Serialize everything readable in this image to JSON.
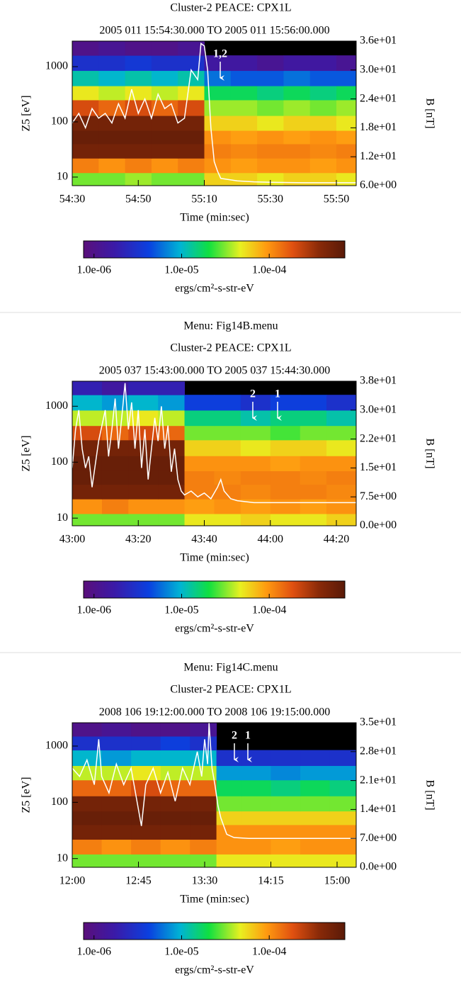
{
  "chart_data": [
    {
      "type": "spectrogram",
      "title": "Cluster-2 PEACE: CPX1L",
      "subtitle": "2005 011 15:54:30.000 TO 2005 011 15:56:00.000",
      "ylabel": "Z5 [eV]",
      "y2label": "B [nT]",
      "xlabel": "Time (min:sec)",
      "log_y": true,
      "ylim": [
        7,
        2900
      ],
      "yticks": [
        10,
        100,
        1000
      ],
      "y2lim": [
        6,
        36
      ],
      "y2ticks": [
        {
          "value": 6,
          "label": "6.0e+00"
        },
        {
          "value": 12,
          "label": "1.2e+01"
        },
        {
          "value": 18,
          "label": "1.8e+01"
        },
        {
          "value": 24,
          "label": "2.4e+01"
        },
        {
          "value": 30,
          "label": "3.0e+01"
        },
        {
          "value": 36,
          "label": "3.6e+01"
        }
      ],
      "y2color": "#000000",
      "xlim": [
        0,
        86
      ],
      "xticks": [
        {
          "value": 0,
          "label": "54:30"
        },
        {
          "value": 20,
          "label": "54:50"
        },
        {
          "value": 40,
          "label": "55:10"
        },
        {
          "value": 60,
          "label": "55:30"
        },
        {
          "value": 80,
          "label": "55:50"
        }
      ],
      "annotations": [
        "1,2"
      ],
      "spectrogram": {
        "xbins": [
          0,
          8,
          16,
          24,
          32,
          40,
          48,
          56,
          64,
          72,
          80,
          86
        ],
        "ybins": [
          7,
          12,
          22,
          40,
          70,
          130,
          250,
          450,
          850,
          1600,
          2900
        ],
        "z": [
          [
            3e-05,
            3e-05,
            3.5e-05,
            3e-05,
            3e-05,
            6e-05,
            6e-05,
            5e-05,
            6e-05,
            6e-05,
            5e-05
          ],
          [
            0.00012,
            0.0001,
            0.00012,
            0.0001,
            0.00012,
            0.0001,
            9e-05,
            0.0001,
            0.0001,
            9e-05,
            0.0001
          ],
          [
            0.0005,
            0.0005,
            0.0005,
            0.0005,
            0.0005,
            0.00012,
            0.00011,
            0.00012,
            0.00012,
            0.00011,
            0.00012
          ],
          [
            0.0006,
            0.0006,
            0.0006,
            0.0006,
            0.0006,
            0.0001,
            9e-05,
            0.0001,
            9e-05,
            0.0001,
            9e-05
          ],
          [
            0.0005,
            0.0005,
            0.0005,
            0.0005,
            0.0005,
            6e-05,
            6e-05,
            5e-05,
            6e-05,
            6e-05,
            5e-05
          ],
          [
            0.0002,
            0.00015,
            0.0002,
            0.00015,
            0.0002,
            3.5e-05,
            3.5e-05,
            3e-05,
            3.5e-05,
            3e-05,
            3.5e-05
          ],
          [
            5e-05,
            4e-05,
            5e-05,
            4e-05,
            5e-05,
            1.8e-05,
            1.8e-05,
            1.5e-05,
            1.8e-05,
            1.5e-05,
            1.8e-05
          ],
          [
            1.2e-05,
            1e-05,
            1.2e-05,
            1e-05,
            1.2e-05,
            6e-06,
            5e-06,
            5e-06,
            6e-06,
            5e-06,
            5e-06
          ],
          [
            3e-06,
            3e-06,
            3.5e-06,
            3e-06,
            3e-06,
            1.5e-06,
            1.5e-06,
            1.2e-06,
            1.5e-06,
            1.5e-06,
            1.2e-06
          ],
          [
            1e-06,
            1.2e-06,
            1e-06,
            1e-06,
            1.2e-06,
            null,
            null,
            null,
            null,
            null,
            null
          ]
        ]
      },
      "line": {
        "color": "#ffffff",
        "axis": "y2",
        "x": [
          0,
          2,
          4,
          6,
          8,
          10,
          12,
          14,
          16,
          18,
          20,
          22,
          24,
          26,
          28,
          30,
          32,
          34,
          36,
          38,
          39,
          40,
          41,
          42,
          43,
          44,
          45,
          50,
          55,
          60,
          70,
          80,
          86
        ],
        "values": [
          19,
          21,
          18,
          22,
          20,
          21,
          19,
          23,
          20,
          26,
          21,
          24,
          20,
          25,
          22,
          23,
          19,
          20,
          30,
          28,
          35.5,
          35,
          30,
          18,
          11,
          9,
          7.5,
          7,
          6.8,
          6.7,
          6.6,
          6.6,
          6.6
        ]
      },
      "colorbar": {
        "clim": [
          7.6e-07,
          0.00073
        ],
        "ticks": [
          {
            "value": 1e-06,
            "label": "1.0e-06"
          },
          {
            "value": 1e-05,
            "label": "1.0e-05"
          },
          {
            "value": 0.0001,
            "label": "1.0e-04"
          }
        ],
        "label": "ergs/cm²-s-str-eV"
      }
    },
    {
      "type": "spectrogram",
      "menu": "Menu: Fig14B.menu",
      "title": "Cluster-2 PEACE: CPX1L",
      "subtitle": "2005 037 15:43:00.000 TO 2005 037 15:44:30.000",
      "ylabel": "Z5 [eV]",
      "y2label": "B [nT]",
      "xlabel": "Time (min:sec)",
      "log_y": true,
      "ylim": [
        7.3,
        2800
      ],
      "yticks": [
        10,
        100,
        1000
      ],
      "y2lim": [
        0,
        37.5
      ],
      "y2ticks": [
        {
          "value": 0,
          "label": "0.0e+00"
        },
        {
          "value": 7.5,
          "label": "7.5e+00"
        },
        {
          "value": 15,
          "label": "1.5e+01"
        },
        {
          "value": 22.5,
          "label": "2.2e+01"
        },
        {
          "value": 30,
          "label": "3.0e+01"
        },
        {
          "value": 37.5,
          "label": "3.8e+01"
        }
      ],
      "y2color": "#000000",
      "xlim": [
        0,
        86
      ],
      "xticks": [
        {
          "value": 0,
          "label": "43:00"
        },
        {
          "value": 20,
          "label": "43:20"
        },
        {
          "value": 40,
          "label": "43:40"
        },
        {
          "value": 60,
          "label": "44:00"
        },
        {
          "value": 80,
          "label": "44:20"
        }
      ],
      "annotations": [
        "2",
        "1"
      ],
      "spectrogram": {
        "xbins": [
          0,
          9,
          17,
          26,
          34,
          43,
          51,
          60,
          69,
          77,
          86
        ],
        "ybins": [
          7.3,
          12,
          22,
          40,
          70,
          130,
          250,
          450,
          850,
          1600,
          2800
        ],
        "z": [
          [
            3e-05,
            3e-05,
            3e-05,
            3e-05,
            5e-05,
            5e-05,
            6e-05,
            5e-05,
            5e-05,
            6e-05
          ],
          [
            0.0001,
            0.00012,
            0.0001,
            0.0001,
            9e-05,
            0.0001,
            9e-05,
            0.0001,
            9e-05,
            0.0001
          ],
          [
            0.0005,
            0.0005,
            0.0005,
            0.0005,
            0.00012,
            0.00012,
            0.00011,
            0.00012,
            0.00012,
            0.00011
          ],
          [
            0.0006,
            0.0006,
            0.0006,
            0.0006,
            0.00012,
            0.00011,
            0.00012,
            0.00012,
            0.00011,
            0.00012
          ],
          [
            0.0006,
            0.0006,
            0.0006,
            0.0006,
            0.0001,
            0.0001,
            0.0001,
            9e-05,
            0.0001,
            0.0001
          ],
          [
            0.0005,
            0.0005,
            0.0005,
            0.0005,
            6e-05,
            6e-05,
            5e-05,
            6e-05,
            6e-05,
            5e-05
          ],
          [
            0.0002,
            0.00015,
            0.0002,
            0.00015,
            3e-05,
            3e-05,
            3e-05,
            2.5e-05,
            3e-05,
            3e-05
          ],
          [
            4e-05,
            4e-05,
            5e-05,
            4e-05,
            1.5e-05,
            1.5e-05,
            1.2e-05,
            1.5e-05,
            1.5e-05,
            1.2e-05
          ],
          [
            1e-05,
            8e-06,
            1e-05,
            8e-06,
            4e-06,
            4e-06,
            3e-06,
            4e-06,
            4e-06,
            3e-06
          ],
          [
            2e-06,
            1.5e-06,
            2e-06,
            2e-06,
            null,
            null,
            null,
            null,
            null,
            null
          ]
        ]
      },
      "line": {
        "color": "#ffffff",
        "axis": "y2",
        "x": [
          0,
          1,
          2,
          3,
          4,
          5,
          6,
          8,
          10,
          11,
          12,
          13,
          14,
          15,
          16,
          17,
          18,
          19,
          20,
          21,
          22,
          23,
          24,
          25,
          26,
          27,
          28,
          29,
          30,
          31,
          32,
          33,
          34,
          36,
          38,
          40,
          42,
          44,
          45,
          46,
          48,
          50,
          55,
          60,
          70,
          80,
          86
        ],
        "values": [
          15,
          25,
          30,
          20,
          15,
          18,
          10,
          22,
          30,
          18,
          25,
          33,
          20,
          28,
          37,
          25,
          32,
          20,
          30,
          15,
          25,
          12,
          20,
          28,
          22,
          31,
          20,
          26,
          14,
          20,
          12,
          9,
          8,
          9,
          7.5,
          8.5,
          7,
          10,
          12,
          9,
          7,
          6.5,
          6,
          6,
          6,
          6,
          6
        ]
      },
      "colorbar": {
        "clim": [
          7.6e-07,
          0.00073
        ],
        "ticks": [
          {
            "value": 1e-06,
            "label": "1.0e-06"
          },
          {
            "value": 1e-05,
            "label": "1.0e-05"
          },
          {
            "value": 0.0001,
            "label": "1.0e-04"
          }
        ],
        "label": "ergs/cm²-s-str-eV"
      }
    },
    {
      "type": "spectrogram",
      "menu": "Menu: Fig14C.menu",
      "title": "Cluster-2 PEACE: CPX1L",
      "subtitle": "2008 106 19:12:00.000 TO 2008 106 19:15:00.000",
      "ylabel": "Z5 [eV]",
      "y2label": "B [nT]",
      "xlabel": "Time (min:sec)",
      "log_y": true,
      "ylim": [
        7,
        2600
      ],
      "yticks": [
        10,
        100,
        1000
      ],
      "y2lim": [
        0,
        35
      ],
      "y2ticks": [
        {
          "value": 0,
          "label": "0.0e+00"
        },
        {
          "value": 7,
          "label": "7.0e+00"
        },
        {
          "value": 14,
          "label": "1.4e+01"
        },
        {
          "value": 21,
          "label": "2.1e+01"
        },
        {
          "value": 28,
          "label": "2.8e+01"
        },
        {
          "value": 35,
          "label": "3.5e+01"
        }
      ],
      "y2color": "#ff0000",
      "xlim": [
        0,
        193
      ],
      "xticks": [
        {
          "value": 0,
          "label": "12:00"
        },
        {
          "value": 45,
          "label": "12:45"
        },
        {
          "value": 90,
          "label": "13:30"
        },
        {
          "value": 135,
          "label": "14:15"
        },
        {
          "value": 180,
          "label": "15:00"
        }
      ],
      "annotations": [
        "2",
        "1"
      ],
      "spectrogram": {
        "xbins": [
          0,
          20,
          40,
          60,
          80,
          98,
          115,
          135,
          155,
          175,
          193
        ],
        "ybins": [
          7,
          12,
          22,
          40,
          70,
          130,
          250,
          450,
          850,
          1500,
          2600
        ],
        "z": [
          [
            3e-05,
            3e-05,
            3e-05,
            3e-05,
            3e-05,
            5e-05,
            5e-05,
            5e-05,
            5e-05,
            5e-05
          ],
          [
            0.00012,
            0.0001,
            0.00012,
            0.0001,
            0.00012,
            0.0001,
            0.0001,
            9e-05,
            0.0001,
            0.0001
          ],
          [
            0.0005,
            0.0005,
            0.0005,
            0.0005,
            0.0005,
            0.0001,
            0.0001,
            0.0001,
            0.0001,
            0.0001
          ],
          [
            0.0006,
            0.0006,
            0.0006,
            0.0006,
            0.0006,
            6e-05,
            6e-05,
            6e-05,
            6e-05,
            6e-05
          ],
          [
            0.0005,
            0.0005,
            0.0005,
            0.0005,
            0.0005,
            3e-05,
            3e-05,
            3e-05,
            3e-05,
            3e-05
          ],
          [
            0.00015,
            0.00015,
            0.0002,
            0.00015,
            0.00015,
            1.8e-05,
            1.8e-05,
            1.5e-05,
            1.8e-05,
            1.5e-05
          ],
          [
            4e-05,
            4e-05,
            5e-05,
            4e-05,
            4e-05,
            8e-06,
            8e-06,
            7e-06,
            8e-06,
            8e-06
          ],
          [
            1e-05,
            8e-06,
            1e-05,
            1e-05,
            1e-05,
            3e-06,
            3e-06,
            3e-06,
            3e-06,
            3e-06
          ],
          [
            3e-06,
            3e-06,
            3e-06,
            4e-06,
            3e-06,
            null,
            null,
            null,
            null,
            null
          ],
          [
            1e-06,
            1.2e-06,
            1e-06,
            1e-06,
            1.2e-06,
            null,
            null,
            null,
            null,
            null
          ]
        ]
      },
      "line": {
        "color": "#ffffff",
        "axis": "y2",
        "x": [
          0,
          5,
          10,
          15,
          18,
          20,
          25,
          30,
          35,
          40,
          45,
          47,
          50,
          55,
          60,
          65,
          70,
          75,
          80,
          85,
          88,
          90,
          92,
          93,
          95,
          97,
          99,
          101,
          103,
          105,
          110,
          120,
          140,
          160,
          180,
          193
        ],
        "values": [
          24,
          22,
          26,
          20,
          31,
          22,
          18,
          25,
          20,
          24,
          14,
          10,
          20,
          24,
          18,
          23,
          16,
          24,
          20,
          28,
          22,
          31,
          25,
          35,
          24,
          20,
          15,
          12,
          10,
          8,
          7.2,
          7,
          7,
          7,
          7,
          7
        ]
      },
      "colorbar": {
        "clim": [
          7.6e-07,
          0.00073
        ],
        "ticks": [
          {
            "value": 1e-06,
            "label": "1.0e-06"
          },
          {
            "value": 1e-05,
            "label": "1.0e-05"
          },
          {
            "value": 0.0001,
            "label": "1.0e-04"
          }
        ],
        "label": "ergs/cm²-s-str-eV"
      }
    }
  ]
}
